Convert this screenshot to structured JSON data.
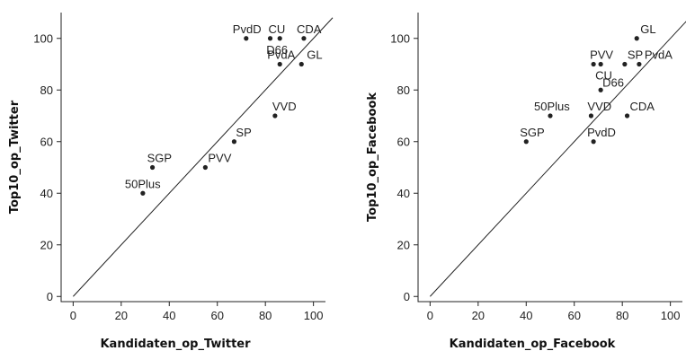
{
  "chart_data": [
    {
      "type": "scatter",
      "xlabel": "Kandidaten_op_Twitter",
      "ylabel": "Top10_op_Twitter",
      "xlim": [
        -5,
        105
      ],
      "ylim": [
        -2,
        110
      ],
      "xticks": [
        0,
        20,
        40,
        60,
        80,
        100
      ],
      "yticks": [
        0,
        20,
        40,
        60,
        80,
        100
      ],
      "reference_line": "y = x",
      "grid": false,
      "points": [
        {
          "label": "PvdD",
          "x": 72,
          "y": 100
        },
        {
          "label": "CU",
          "x": 82,
          "y": 100
        },
        {
          "label": "D66",
          "x": 86,
          "y": 100
        },
        {
          "label": "CDA",
          "x": 96,
          "y": 100
        },
        {
          "label": "PvdA",
          "x": 86,
          "y": 90
        },
        {
          "label": "GL",
          "x": 95,
          "y": 90
        },
        {
          "label": "VVD",
          "x": 84,
          "y": 70
        },
        {
          "label": "SP",
          "x": 67,
          "y": 60
        },
        {
          "label": "PVV",
          "x": 55,
          "y": 50
        },
        {
          "label": "SGP",
          "x": 33,
          "y": 50
        },
        {
          "label": "50Plus",
          "x": 29,
          "y": 40
        }
      ]
    },
    {
      "type": "scatter",
      "xlabel": "Kandidaten_op_Facebook",
      "ylabel": "Top10_op_Facebook",
      "xlim": [
        -5,
        105
      ],
      "ylim": [
        -2,
        110
      ],
      "xticks": [
        0,
        20,
        40,
        60,
        80,
        100
      ],
      "yticks": [
        0,
        20,
        40,
        60,
        80,
        100
      ],
      "reference_line": "y = x",
      "grid": false,
      "points": [
        {
          "label": "GL",
          "x": 86,
          "y": 100
        },
        {
          "label": "PVV",
          "x": 68,
          "y": 90
        },
        {
          "label": "CU",
          "x": 71,
          "y": 90
        },
        {
          "label": "SP",
          "x": 81,
          "y": 90
        },
        {
          "label": "PvdA",
          "x": 87,
          "y": 90
        },
        {
          "label": "D66",
          "x": 71,
          "y": 80
        },
        {
          "label": "50Plus",
          "x": 50,
          "y": 70
        },
        {
          "label": "VVD",
          "x": 67,
          "y": 70
        },
        {
          "label": "CDA",
          "x": 82,
          "y": 70
        },
        {
          "label": "SGP",
          "x": 40,
          "y": 60
        },
        {
          "label": "PvdD",
          "x": 68,
          "y": 60
        }
      ]
    }
  ]
}
